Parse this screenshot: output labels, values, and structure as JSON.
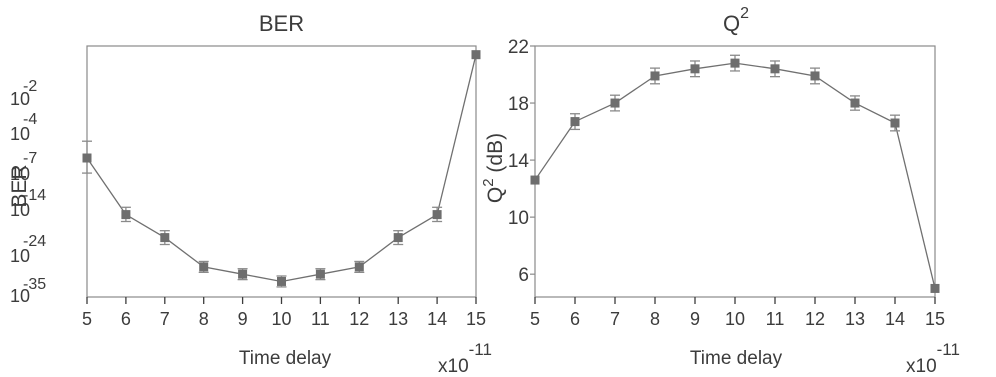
{
  "chart_data": [
    {
      "type": "line",
      "title": "BER",
      "xlabel": "Time delay",
      "x_multiplier": "x10",
      "x_multiplier_exp": "-11",
      "ylabel": "BER",
      "y_scale": "log",
      "x": [
        5,
        6,
        7,
        8,
        9,
        10,
        11,
        12,
        13,
        14,
        15
      ],
      "x_ticks": [
        "5",
        "6",
        "7",
        "8",
        "9",
        "10",
        "11",
        "12",
        "13",
        "14",
        "15"
      ],
      "xlim": [
        5,
        15
      ],
      "y_ticks": [
        {
          "base": "10",
          "exp": "-2"
        },
        {
          "base": "10",
          "exp": "-4"
        },
        {
          "base": "10",
          "exp": "-7"
        },
        {
          "base": "10",
          "exp": "-14"
        },
        {
          "base": "10",
          "exp": "-24"
        },
        {
          "base": "10",
          "exp": "-35"
        }
      ],
      "series": [
        {
          "values": [
            1e-06,
            1e-15,
            1e-20,
            1e-27,
            1e-29,
            1e-31,
            1e-29,
            1e-27,
            1e-20,
            1e-15,
            0.1
          ],
          "error_exp": [
            1.2,
            1.5,
            1.5,
            1.5,
            1.5,
            1.5,
            1.5,
            1.5,
            1.5,
            1.5,
            0
          ]
        }
      ],
      "grid": false,
      "color": "#707070"
    },
    {
      "type": "line",
      "title": "Q",
      "title_sup": "2",
      "xlabel": "Time delay",
      "x_multiplier": "x10",
      "x_multiplier_exp": "-11",
      "ylabel_base": "Q",
      "ylabel_sup": "2",
      "ylabel_rest": " (dB)",
      "x": [
        5,
        6,
        7,
        8,
        9,
        10,
        11,
        12,
        13,
        14,
        15
      ],
      "x_ticks": [
        "5",
        "6",
        "7",
        "8",
        "9",
        "10",
        "11",
        "12",
        "13",
        "14",
        "15"
      ],
      "xlim": [
        5,
        15
      ],
      "y_ticks": [
        "22",
        "18",
        "14",
        "10",
        "6"
      ],
      "ylim": [
        4.4,
        22
      ],
      "series": [
        {
          "values": [
            12.6,
            16.7,
            18.0,
            19.9,
            20.4,
            20.8,
            20.4,
            19.9,
            18.0,
            16.6,
            5.0
          ],
          "errors": [
            0,
            0.55,
            0.55,
            0.55,
            0.55,
            0.55,
            0.55,
            0.55,
            0.5,
            0.55,
            0
          ]
        }
      ],
      "grid": false,
      "color": "#707070"
    }
  ]
}
